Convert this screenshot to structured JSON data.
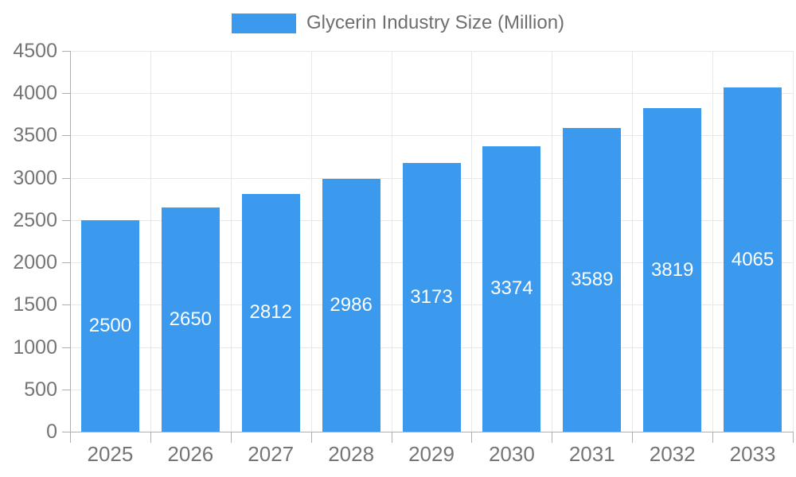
{
  "legend": {
    "label": "Glycerin Industry Size (Million)",
    "swatch_color": "#3B9AEE"
  },
  "chart_data": {
    "type": "bar",
    "title": "Glycerin Industry Size (Million)",
    "categories": [
      "2025",
      "2026",
      "2027",
      "2028",
      "2029",
      "2030",
      "2031",
      "2032",
      "2033"
    ],
    "values": [
      2500,
      2650,
      2812,
      2986,
      3173,
      3374,
      3589,
      3819,
      4065
    ],
    "value_labels": [
      "2500",
      "2650",
      "2812",
      "2986",
      "3173",
      "3374",
      "3589",
      "3819",
      "4065"
    ],
    "xlabel": "",
    "ylabel": "",
    "ylim": [
      0,
      4500
    ],
    "ytick_step": 500,
    "yticks": [
      0,
      500,
      1000,
      1500,
      2000,
      2500,
      3000,
      3500,
      4000,
      4500
    ],
    "ytick_labels": [
      "0",
      "500",
      "1000",
      "1500",
      "2000",
      "2500",
      "3000",
      "3500",
      "4000",
      "4500"
    ],
    "grid": true,
    "legend_position": "top-center",
    "bar_color": "#3B9AEE",
    "value_label_color": "#FFFFFF"
  },
  "colors": {
    "background": "#FFFFFF",
    "bar": "#3B9AEE",
    "grid": "#E8E8E8",
    "axis": "#B0B0B0",
    "axis_label": "#757575",
    "legend_text": "#6E6E6E",
    "value_label": "#FFFFFF"
  }
}
